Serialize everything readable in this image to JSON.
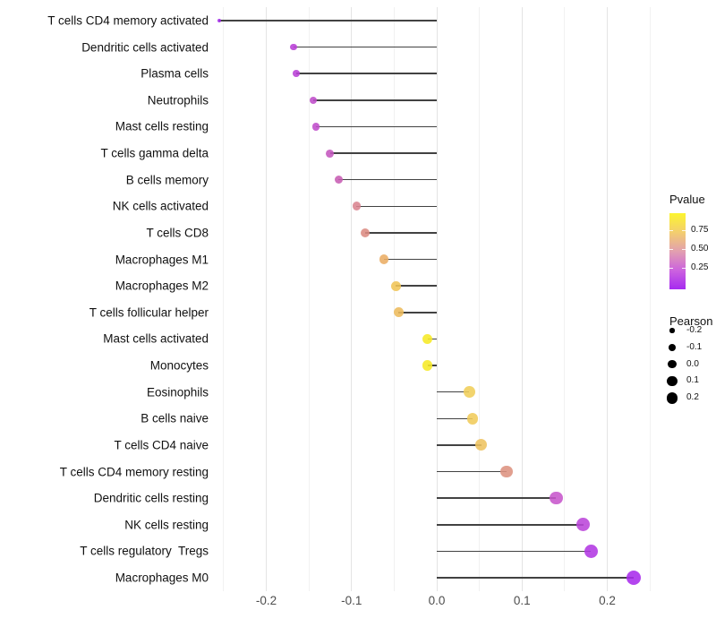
{
  "chart_data": {
    "type": "lollipop",
    "title": "",
    "xlabel": "",
    "ylabel": "",
    "xlim": [
      -0.263,
      0.262
    ],
    "grid": "vertical-only",
    "x_major_ticks": [
      {
        "label": "-0.2",
        "value": -0.2
      },
      {
        "label": "-0.1",
        "value": -0.1
      },
      {
        "label": "0.0",
        "value": 0.0
      },
      {
        "label": "0.1",
        "value": 0.1
      },
      {
        "label": "0.2",
        "value": 0.2
      }
    ],
    "x_minor_ticks": [
      -0.25,
      -0.15,
      -0.05,
      0.05,
      0.15,
      0.25
    ],
    "rows": [
      {
        "label": "T cells CD4 memory activated",
        "pearson": -0.255,
        "pvalue": 0.03,
        "color": "#A22BE8"
      },
      {
        "label": "Dendritic cells activated",
        "pearson": -0.168,
        "pvalue": 0.16,
        "color": "#B83FD6"
      },
      {
        "label": "Plasma cells",
        "pearson": -0.165,
        "pvalue": 0.16,
        "color": "#B840D6"
      },
      {
        "label": "Neutrophils",
        "pearson": -0.145,
        "pvalue": 0.21,
        "color": "#BF4DCB"
      },
      {
        "label": "Mast cells resting",
        "pearson": -0.142,
        "pvalue": 0.21,
        "color": "#BF4DCB"
      },
      {
        "label": "T cells gamma delta",
        "pearson": -0.125,
        "pvalue": 0.25,
        "color": "#C456BE"
      },
      {
        "label": "B cells memory",
        "pearson": -0.115,
        "pvalue": 0.29,
        "color": "#C75CB3"
      },
      {
        "label": "NK cells activated",
        "pearson": -0.094,
        "pvalue": 0.45,
        "color": "#D9848F"
      },
      {
        "label": "T cells CD8",
        "pearson": -0.084,
        "pvalue": 0.48,
        "color": "#DC8B82"
      },
      {
        "label": "Macrophages M1",
        "pearson": -0.062,
        "pvalue": 0.62,
        "color": "#EBAD64"
      },
      {
        "label": "Macrophages M2",
        "pearson": -0.048,
        "pvalue": 0.69,
        "color": "#F0C455"
      },
      {
        "label": "T cells follicular helper",
        "pearson": -0.045,
        "pvalue": 0.66,
        "color": "#EDBB5C"
      },
      {
        "label": "Mast cells activated",
        "pearson": -0.011,
        "pvalue": 0.92,
        "color": "#F6E926"
      },
      {
        "label": "Monocytes",
        "pearson": -0.011,
        "pvalue": 0.92,
        "color": "#F6E926"
      },
      {
        "label": "Eosinophils",
        "pearson": 0.038,
        "pvalue": 0.73,
        "color": "#F0CE59"
      },
      {
        "label": "B cells naive",
        "pearson": 0.042,
        "pvalue": 0.72,
        "color": "#F0CB5A"
      },
      {
        "label": "T cells CD4 naive",
        "pearson": 0.052,
        "pvalue": 0.68,
        "color": "#EEC360"
      },
      {
        "label": "T cells CD4 memory resting",
        "pearson": 0.082,
        "pvalue": 0.5,
        "color": "#DD9280"
      },
      {
        "label": "Dendritic cells resting",
        "pearson": 0.14,
        "pvalue": 0.27,
        "color": "#C756CC"
      },
      {
        "label": "NK cells resting",
        "pearson": 0.172,
        "pvalue": 0.17,
        "color": "#BB46DA"
      },
      {
        "label": "T cells regulatory  Tregs",
        "pearson": 0.181,
        "pvalue": 0.14,
        "color": "#B238E3"
      },
      {
        "label": "Macrophages M0",
        "pearson": 0.231,
        "pvalue": 0.06,
        "color": "#A82BEC"
      }
    ],
    "legend_pvalue": {
      "title": "Pvalue",
      "range": [
        0,
        1
      ],
      "ticks": [
        {
          "label": "0.75",
          "frac_from_top": 0.224
        },
        {
          "label": "0.50",
          "frac_from_top": 0.47
        },
        {
          "label": "0.25",
          "frac_from_top": 0.718
        }
      ],
      "gradient_top_to_bottom": [
        "#FCF52F",
        "#F3CE6E",
        "#E2A0AF",
        "#CC63DE",
        "#A62BF0"
      ]
    },
    "legend_pearson": {
      "title": "Pearson",
      "items": [
        {
          "label": "-0.2",
          "value": -0.2
        },
        {
          "label": "-0.1",
          "value": -0.1
        },
        {
          "label": "0.0",
          "value": 0.0
        },
        {
          "label": "0.1",
          "value": 0.1
        },
        {
          "label": "0.2",
          "value": 0.2
        }
      ],
      "key_color": "#000000"
    }
  }
}
